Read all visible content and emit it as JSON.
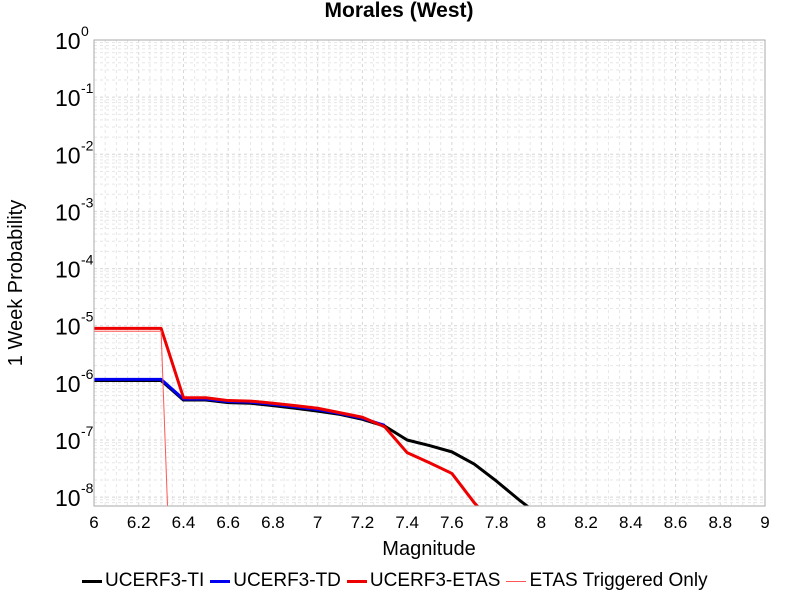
{
  "chart_data": {
    "type": "line",
    "title": "Morales (West)",
    "xlabel": "Magnitude",
    "ylabel": "1 Week Probability",
    "xlim": [
      6,
      9
    ],
    "ylim": [
      7e-09,
      1
    ],
    "yscale": "log",
    "grid": true,
    "legend_position": "bottom",
    "x_ticks": [
      "6",
      "6.2",
      "6.4",
      "6.6",
      "6.8",
      "7",
      "7.2",
      "7.4",
      "7.6",
      "7.8",
      "8",
      "8.2",
      "8.4",
      "8.6",
      "8.8",
      "9"
    ],
    "y_ticks": [
      {
        "base": "10",
        "exp": "0"
      },
      {
        "base": "10",
        "exp": "-1"
      },
      {
        "base": "10",
        "exp": "-2"
      },
      {
        "base": "10",
        "exp": "-3"
      },
      {
        "base": "10",
        "exp": "-4"
      },
      {
        "base": "10",
        "exp": "-5"
      },
      {
        "base": "10",
        "exp": "-6"
      },
      {
        "base": "10",
        "exp": "-7"
      },
      {
        "base": "10",
        "exp": "-8"
      }
    ],
    "series": [
      {
        "name": "UCERF3-TI",
        "color": "#000000",
        "width": 3,
        "x": [
          6.0,
          6.1,
          6.2,
          6.3,
          6.4,
          6.5,
          6.6,
          6.7,
          6.8,
          6.9,
          7.0,
          7.1,
          7.2,
          7.3,
          7.4,
          7.5,
          7.6,
          7.7,
          7.8,
          7.9,
          8.0
        ],
        "y": [
          1.1e-06,
          1.1e-06,
          1.1e-06,
          1.1e-06,
          5e-07,
          5e-07,
          4.5e-07,
          4.4e-07,
          4e-07,
          3.6e-07,
          3.2e-07,
          2.8e-07,
          2.3e-07,
          1.75e-07,
          1e-07,
          8e-08,
          6.2e-08,
          3.8e-08,
          1.9e-08,
          9e-09,
          4.5e-09
        ]
      },
      {
        "name": "UCERF3-TD",
        "color": "#0000ee",
        "width": 3,
        "x": [
          6.0,
          6.1,
          6.2,
          6.3,
          6.4,
          6.5,
          6.6,
          6.7,
          6.8,
          6.9,
          7.0,
          7.1,
          7.2,
          7.3
        ],
        "y": [
          1.15e-06,
          1.15e-06,
          1.15e-06,
          1.15e-06,
          5.2e-07,
          5.2e-07,
          4.7e-07,
          4.6e-07,
          4.2e-07,
          3.8e-07,
          3.4e-07,
          2.9e-07,
          2.4e-07,
          1.8e-07
        ]
      },
      {
        "name": "UCERF3-ETAS",
        "color": "#ee0000",
        "width": 3,
        "x": [
          6.0,
          6.1,
          6.2,
          6.3,
          6.4,
          6.5,
          6.6,
          6.7,
          6.8,
          6.9,
          7.0,
          7.1,
          7.2,
          7.3,
          7.4,
          7.5,
          7.6,
          7.7,
          7.8
        ],
        "y": [
          9e-06,
          9e-06,
          9e-06,
          9e-06,
          5.5e-07,
          5.5e-07,
          4.9e-07,
          4.8e-07,
          4.4e-07,
          4e-07,
          3.6e-07,
          3e-07,
          2.5e-07,
          1.7e-07,
          6e-08,
          4e-08,
          2.6e-08,
          8e-09,
          3e-09
        ]
      },
      {
        "name": "ETAS Triggered Only",
        "color": "#ff5555",
        "width": 1,
        "x": [
          6.0,
          6.1,
          6.2,
          6.3,
          6.33
        ],
        "y": [
          8e-06,
          8e-06,
          8e-06,
          8e-06,
          5e-09
        ]
      }
    ]
  }
}
